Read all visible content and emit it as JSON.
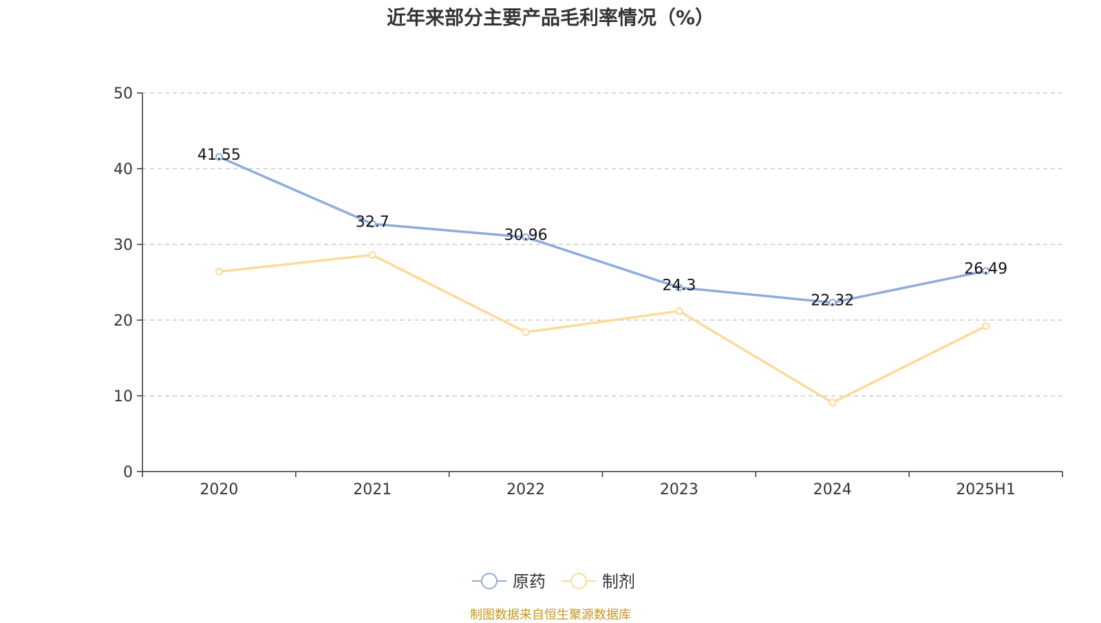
{
  "chart_data": {
    "type": "line",
    "title": "近年来部分主要产品毛利率情况（%）",
    "categories": [
      "2020",
      "2021",
      "2022",
      "2023",
      "2024",
      "2025H1"
    ],
    "ylim": [
      0,
      50
    ],
    "yticks": [
      0,
      10,
      20,
      30,
      40,
      50
    ],
    "grid": true,
    "legend_position": "bottom-center",
    "series": [
      {
        "name": "原药",
        "color": "#8eacd8",
        "values": [
          41.55,
          32.7,
          30.96,
          24.3,
          22.32,
          26.49
        ],
        "labels": [
          "41.55",
          "32.7",
          "30.96",
          "24.3",
          "22.32",
          "26.49"
        ],
        "show_labels": true
      },
      {
        "name": "制剂",
        "color": "#fbdb98",
        "values": [
          26.4,
          28.6,
          18.4,
          21.2,
          9.1,
          19.2
        ],
        "show_labels": false
      }
    ]
  },
  "source_note": "制图数据来自恒生聚源数据库"
}
